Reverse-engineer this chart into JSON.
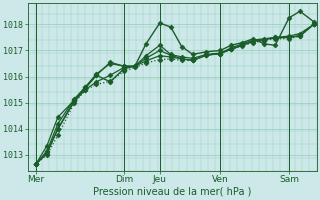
{
  "xlabel": "Pression niveau de la mer( hPa )",
  "bg_color": "#cce8e8",
  "grid_color": "#99ccbb",
  "line_color": "#1a5c2a",
  "axis_label_color": "#1a5c2a",
  "ylim": [
    1012.4,
    1018.8
  ],
  "xlim": [
    0,
    10.5
  ],
  "yticks": [
    1013,
    1014,
    1015,
    1016,
    1017,
    1018
  ],
  "ytick_labels": [
    "1013",
    "1014",
    "1015",
    "1016",
    "1017",
    "1018"
  ],
  "xtick_positions": [
    0.3,
    3.5,
    4.8,
    7.0,
    9.5
  ],
  "xtick_labels": [
    "Mer",
    "Dim",
    "Jeu",
    "Ven",
    "Sam"
  ],
  "vline_positions": [
    0.3,
    3.5,
    4.8,
    7.0,
    9.5
  ],
  "lines": [
    {
      "x": [
        0.3,
        0.7,
        1.1,
        1.7,
        2.1,
        2.5,
        3.0,
        3.5,
        3.9,
        4.3,
        4.8,
        5.2,
        5.6,
        6.0,
        6.5,
        7.0,
        7.4,
        7.8,
        8.2,
        8.6,
        9.0,
        9.5,
        9.9,
        10.4
      ],
      "y": [
        1012.65,
        1013.1,
        1014.0,
        1015.1,
        1015.6,
        1016.05,
        1015.8,
        1016.3,
        1016.4,
        1017.25,
        1018.05,
        1017.9,
        1017.15,
        1016.85,
        1016.95,
        1017.0,
        1017.2,
        1017.3,
        1017.45,
        1017.25,
        1017.2,
        1018.25,
        1018.5,
        1018.1
      ],
      "style": "-",
      "marker": "D",
      "markersize": 2.5,
      "linewidth": 1.0
    },
    {
      "x": [
        0.3,
        0.7,
        1.1,
        1.7,
        2.1,
        2.5,
        3.0,
        3.5,
        3.9,
        4.3,
        4.8,
        5.2,
        5.6,
        6.0,
        6.5,
        7.0,
        7.4,
        7.8,
        8.2,
        8.6,
        9.0,
        9.5,
        9.9,
        10.4
      ],
      "y": [
        1012.65,
        1013.15,
        1014.2,
        1015.15,
        1015.6,
        1016.1,
        1016.5,
        1016.4,
        1016.4,
        1016.8,
        1017.2,
        1016.85,
        1016.75,
        1016.7,
        1016.85,
        1016.9,
        1017.1,
        1017.25,
        1017.4,
        1017.45,
        1017.5,
        1017.55,
        1017.65,
        1018.0
      ],
      "style": "-",
      "marker": "D",
      "markersize": 2.5,
      "linewidth": 0.9
    },
    {
      "x": [
        0.3,
        0.7,
        1.1,
        1.7,
        2.1,
        2.5,
        3.0,
        3.5,
        3.9,
        4.3,
        4.8,
        5.2,
        5.6,
        6.0,
        6.5,
        7.0,
        7.4,
        7.8,
        8.2,
        8.6,
        9.0,
        9.5,
        9.9,
        10.4
      ],
      "y": [
        1012.65,
        1013.35,
        1014.45,
        1015.1,
        1015.55,
        1016.05,
        1016.55,
        1016.4,
        1016.4,
        1016.7,
        1017.0,
        1016.82,
        1016.68,
        1016.62,
        1016.82,
        1016.88,
        1017.05,
        1017.2,
        1017.35,
        1017.42,
        1017.48,
        1017.5,
        1017.55,
        1018.0
      ],
      "style": "-",
      "marker": "D",
      "markersize": 2.5,
      "linewidth": 0.9
    },
    {
      "x": [
        0.3,
        0.7,
        1.1,
        1.7,
        2.1,
        2.5,
        3.0,
        3.5,
        3.9,
        4.3,
        4.8,
        5.2,
        5.6,
        6.0,
        6.5,
        7.0,
        7.4,
        7.8,
        8.2,
        8.6,
        9.0,
        9.5,
        9.9,
        10.4
      ],
      "y": [
        1012.65,
        1013.05,
        1014.0,
        1015.05,
        1015.5,
        1015.8,
        1016.05,
        1016.35,
        1016.4,
        1016.6,
        1016.8,
        1016.75,
        1016.68,
        1016.62,
        1016.82,
        1016.88,
        1017.05,
        1017.2,
        1017.35,
        1017.42,
        1017.5,
        1017.5,
        1017.58,
        1018.0
      ],
      "style": "-",
      "marker": "D",
      "markersize": 2.5,
      "linewidth": 0.9
    },
    {
      "x": [
        0.3,
        0.7,
        1.1,
        1.7,
        2.1,
        2.5,
        3.0,
        3.5,
        3.9,
        4.3,
        4.8,
        5.2,
        5.6,
        6.0,
        6.5,
        7.0,
        7.4,
        7.8,
        8.2,
        8.6,
        9.0,
        9.5,
        9.9,
        10.4
      ],
      "y": [
        1012.65,
        1013.0,
        1013.75,
        1015.0,
        1015.48,
        1015.7,
        1015.82,
        1016.2,
        1016.35,
        1016.52,
        1016.65,
        1016.68,
        1016.62,
        1016.62,
        1016.82,
        1016.88,
        1017.05,
        1017.18,
        1017.3,
        1017.38,
        1017.45,
        1017.45,
        1017.55,
        1018.0
      ],
      "style": ":",
      "marker": "D",
      "markersize": 2.5,
      "linewidth": 0.9
    }
  ]
}
